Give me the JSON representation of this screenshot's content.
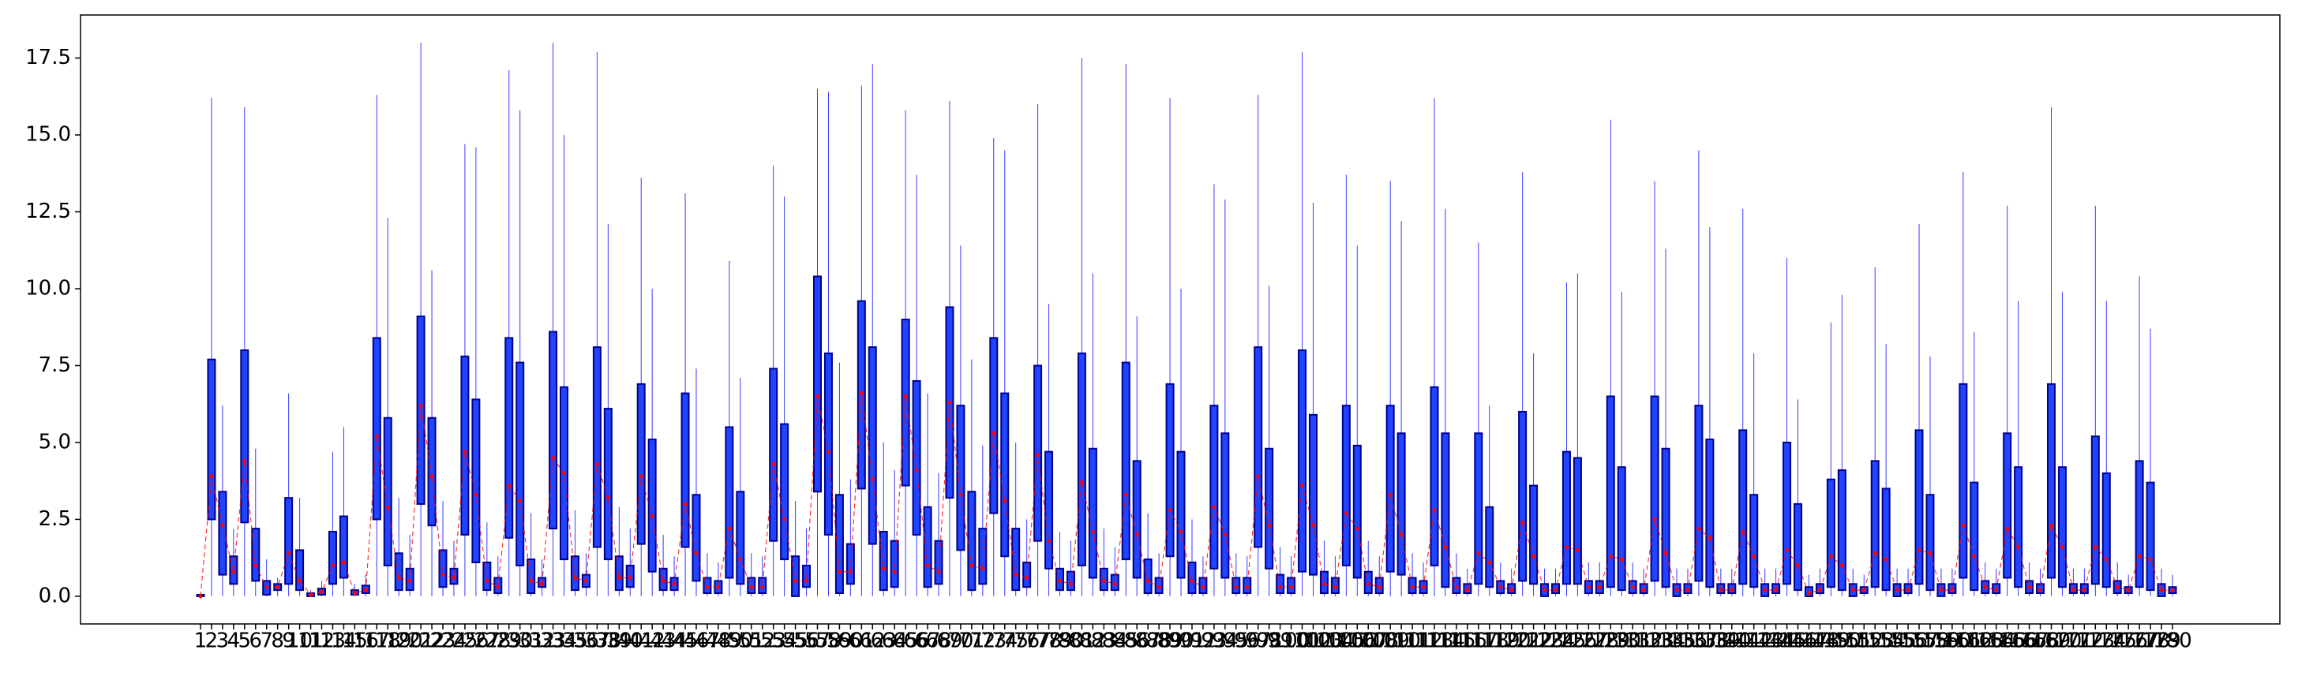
{
  "chart_data": {
    "type": "box",
    "categories": [
      1,
      2,
      3,
      4,
      5,
      6,
      7,
      8,
      9,
      10,
      11,
      12,
      13,
      14,
      15,
      16,
      17,
      18,
      19,
      20,
      21,
      22,
      23,
      24,
      25,
      26,
      27,
      28,
      29,
      30,
      31,
      32,
      33,
      34,
      35,
      36,
      37,
      38,
      39,
      40,
      41,
      42,
      43,
      44,
      45,
      46,
      47,
      48,
      49,
      50,
      51,
      52,
      53,
      54,
      55,
      56,
      57,
      58,
      59,
      60,
      61,
      62,
      63,
      64,
      65,
      66,
      67,
      68,
      69,
      70,
      71,
      72,
      73,
      74,
      75,
      76,
      77,
      78,
      79,
      80,
      81,
      82,
      83,
      84,
      85,
      86,
      87,
      88,
      89,
      90,
      91,
      92,
      93,
      94,
      95,
      96,
      97,
      98,
      99,
      100,
      101,
      102,
      103,
      104,
      105,
      106,
      107,
      108,
      109,
      110,
      111,
      112,
      113,
      114,
      115,
      116,
      117,
      118,
      119,
      120,
      121,
      122,
      123,
      124,
      125,
      126,
      127,
      128,
      129,
      130,
      131,
      132,
      133,
      134,
      135,
      136,
      137,
      138,
      139,
      140,
      141,
      142,
      143,
      144,
      145,
      146,
      147,
      148,
      149,
      150,
      151,
      152,
      153,
      154,
      155,
      156,
      157,
      158,
      159,
      160,
      161,
      162,
      163,
      164,
      165,
      166,
      167,
      168,
      169,
      170,
      171,
      172,
      173,
      174,
      175,
      176,
      177,
      178,
      179,
      180
    ],
    "whislo": [
      0,
      0,
      0,
      0,
      0,
      0,
      0,
      0,
      0,
      0,
      0,
      0,
      0,
      0,
      0,
      0,
      0,
      0,
      0,
      0,
      0,
      0,
      0,
      0,
      0,
      0,
      0,
      0,
      0,
      0,
      0,
      0,
      0,
      0,
      0,
      0,
      0,
      0,
      0,
      0,
      0,
      0,
      0,
      0,
      0,
      0,
      0,
      0,
      0,
      0,
      0,
      0,
      0,
      0,
      0,
      0,
      0,
      0,
      0,
      0,
      0,
      0,
      0,
      0,
      0,
      0,
      0,
      0,
      0,
      0,
      0,
      0,
      0,
      0,
      0,
      0,
      0,
      0,
      0,
      0,
      0,
      0,
      0,
      0,
      0,
      0,
      0,
      0,
      0,
      0,
      0,
      0,
      0,
      0,
      0,
      0,
      0,
      0,
      0,
      0,
      0,
      0,
      0,
      0,
      0,
      0,
      0,
      0,
      0,
      0,
      0,
      0,
      0,
      0,
      0,
      0,
      0,
      0,
      0,
      0,
      0,
      0,
      0,
      0,
      0,
      0,
      0,
      0,
      0,
      0,
      0,
      0,
      0,
      0,
      0,
      0,
      0,
      0,
      0,
      0,
      0,
      0,
      0,
      0,
      0,
      0,
      0,
      0,
      0,
      0,
      0,
      0,
      0,
      0,
      0,
      0,
      0,
      0,
      0,
      0,
      0,
      0,
      0,
      0,
      0,
      0,
      0,
      0,
      0,
      0,
      0,
      0,
      0,
      0,
      0,
      0,
      0,
      0,
      0,
      0
    ],
    "q1": [
      0,
      2.5,
      0.7,
      0.4,
      2.4,
      0.5,
      0.05,
      0.2,
      0.4,
      0.2,
      0,
      0.05,
      0.4,
      0.6,
      0.05,
      0.1,
      2.5,
      1.0,
      0.2,
      0.2,
      3.0,
      2.3,
      0.3,
      0.4,
      2.0,
      1.1,
      0.2,
      0.1,
      1.9,
      1.0,
      0.1,
      0.3,
      2.2,
      1.2,
      0.2,
      0.3,
      1.6,
      1.2,
      0.2,
      0.3,
      1.7,
      0.8,
      0.2,
      0.2,
      1.6,
      0.5,
      0.1,
      0.1,
      0.6,
      0.4,
      0.1,
      0.1,
      1.8,
      1.2,
      0,
      0.3,
      3.4,
      2.0,
      0.1,
      0.4,
      3.5,
      1.7,
      0.2,
      0.3,
      3.6,
      2.0,
      0.3,
      0.4,
      3.2,
      1.5,
      0.2,
      0.4,
      2.7,
      1.3,
      0.2,
      0.3,
      1.8,
      0.9,
      0.2,
      0.2,
      1.0,
      0.6,
      0.2,
      0.2,
      1.2,
      0.6,
      0.1,
      0.1,
      1.3,
      0.6,
      0.1,
      0.1,
      0.9,
      0.6,
      0.1,
      0.1,
      1.6,
      0.9,
      0.1,
      0.1,
      0.8,
      0.7,
      0.1,
      0.1,
      1.0,
      0.6,
      0.1,
      0.1,
      0.8,
      0.7,
      0.1,
      0.1,
      1.0,
      0.3,
      0.1,
      0.1,
      0.4,
      0.3,
      0.1,
      0.1,
      0.5,
      0.4,
      0,
      0.1,
      0.4,
      0.4,
      0.1,
      0.1,
      0.3,
      0.2,
      0.1,
      0.1,
      0.5,
      0.3,
      0,
      0.1,
      0.5,
      0.3,
      0.1,
      0.1,
      0.4,
      0.3,
      0,
      0.1,
      0.4,
      0.2,
      0,
      0.1,
      0.3,
      0.2,
      0,
      0.1,
      0.3,
      0.2,
      0,
      0.1,
      0.4,
      0.2,
      0,
      0.1,
      0.6,
      0.2,
      0.1,
      0.1,
      0.6,
      0.3,
      0.1,
      0.1,
      0.6,
      0.3,
      0.1,
      0.1,
      0.4,
      0.3,
      0.1,
      0.1,
      0.3,
      0.2,
      0,
      0.1
    ],
    "median": [
      0,
      3.9,
      2.3,
      0.8,
      4.4,
      1.0,
      0.3,
      0.3,
      1.4,
      0.5,
      0.05,
      0.15,
      1.0,
      1.1,
      0.1,
      0.2,
      5.2,
      2.9,
      0.6,
      0.5,
      6.2,
      3.9,
      0.7,
      0.6,
      4.7,
      3.3,
      0.5,
      0.3,
      3.6,
      3.1,
      0.5,
      0.4,
      4.5,
      4.0,
      0.6,
      0.5,
      4.3,
      3.2,
      0.6,
      0.6,
      3.9,
      2.6,
      0.5,
      0.4,
      3.0,
      1.4,
      0.3,
      0.3,
      2.2,
      1.2,
      0.3,
      0.3,
      4.3,
      2.5,
      0.5,
      0.5,
      6.5,
      4.7,
      0.8,
      0.8,
      6.6,
      3.8,
      0.9,
      0.8,
      6.5,
      4.1,
      1.0,
      0.8,
      6.3,
      3.3,
      1.0,
      0.9,
      5.3,
      3.1,
      0.7,
      0.6,
      4.6,
      1.8,
      0.5,
      0.4,
      3.7,
      2.1,
      0.5,
      0.4,
      3.3,
      2.0,
      0.5,
      0.3,
      2.8,
      2.1,
      0.5,
      0.3,
      2.9,
      2.0,
      0.3,
      0.3,
      3.9,
      2.3,
      0.3,
      0.3,
      3.6,
      2.3,
      0.4,
      0.3,
      2.7,
      2.2,
      0.4,
      0.3,
      3.3,
      2.0,
      0.3,
      0.3,
      2.8,
      1.6,
      0.3,
      0.2,
      1.4,
      1.1,
      0.3,
      0.2,
      2.4,
      1.3,
      0.2,
      0.2,
      1.6,
      1.5,
      0.3,
      0.3,
      1.3,
      1.2,
      0.3,
      0.2,
      2.5,
      1.4,
      0.2,
      0.2,
      2.2,
      1.9,
      0.2,
      0.2,
      2.1,
      1.3,
      0.2,
      0.2,
      1.5,
      1.0,
      0.1,
      0.2,
      1.3,
      1.0,
      0.2,
      0.2,
      1.4,
      1.2,
      0.2,
      0.2,
      1.5,
      1.4,
      0.2,
      0.2,
      2.3,
      1.3,
      0.3,
      0.2,
      2.2,
      1.6,
      0.3,
      0.2,
      2.3,
      1.6,
      0.2,
      0.2,
      1.6,
      1.2,
      0.3,
      0.2,
      1.3,
      1.2,
      0.2,
      0.2
    ],
    "q3": [
      0.05,
      7.7,
      3.4,
      1.3,
      8.0,
      2.2,
      0.5,
      0.4,
      3.2,
      1.5,
      0.1,
      0.25,
      2.1,
      2.6,
      0.2,
      0.35,
      8.4,
      5.8,
      1.4,
      0.9,
      9.1,
      5.8,
      1.5,
      0.9,
      7.8,
      6.4,
      1.1,
      0.6,
      8.4,
      7.6,
      1.2,
      0.6,
      8.6,
      6.8,
      1.3,
      0.7,
      8.1,
      6.1,
      1.3,
      1.0,
      6.9,
      5.1,
      0.9,
      0.6,
      6.6,
      3.3,
      0.6,
      0.5,
      5.5,
      3.4,
      0.6,
      0.6,
      7.4,
      5.6,
      1.3,
      1.0,
      10.4,
      7.9,
      3.3,
      1.7,
      9.6,
      8.1,
      2.1,
      1.8,
      9.0,
      7.0,
      2.9,
      1.8,
      9.4,
      6.2,
      3.4,
      2.2,
      8.4,
      6.6,
      2.2,
      1.1,
      7.5,
      4.7,
      0.9,
      0.8,
      7.9,
      4.8,
      0.9,
      0.7,
      7.6,
      4.4,
      1.2,
      0.6,
      6.9,
      4.7,
      1.1,
      0.6,
      6.2,
      5.3,
      0.6,
      0.6,
      8.1,
      4.8,
      0.7,
      0.6,
      8.0,
      5.9,
      0.8,
      0.6,
      6.2,
      4.9,
      0.8,
      0.6,
      6.2,
      5.3,
      0.6,
      0.5,
      6.8,
      5.3,
      0.6,
      0.4,
      5.3,
      2.9,
      0.5,
      0.4,
      6.0,
      3.6,
      0.4,
      0.4,
      4.7,
      4.5,
      0.5,
      0.5,
      6.5,
      4.2,
      0.5,
      0.4,
      6.5,
      4.8,
      0.4,
      0.4,
      6.2,
      5.1,
      0.4,
      0.4,
      5.4,
      3.3,
      0.4,
      0.4,
      5.0,
      3.0,
      0.3,
      0.4,
      3.8,
      4.1,
      0.4,
      0.3,
      4.4,
      3.5,
      0.4,
      0.4,
      5.4,
      3.3,
      0.4,
      0.4,
      6.9,
      3.7,
      0.5,
      0.4,
      5.3,
      4.2,
      0.5,
      0.4,
      6.9,
      4.2,
      0.4,
      0.4,
      5.2,
      4.0,
      0.5,
      0.3,
      4.4,
      3.7,
      0.4,
      0.3
    ],
    "whishi": [
      0.05,
      16.2,
      6.2,
      2.2,
      15.9,
      4.8,
      1.2,
      0.6,
      6.6,
      3.2,
      0.2,
      0.5,
      4.7,
      5.5,
      0.4,
      0.7,
      16.3,
      12.3,
      3.2,
      2.0,
      18.0,
      10.6,
      3.1,
      1.8,
      14.7,
      14.6,
      2.4,
      1.3,
      17.1,
      15.8,
      2.7,
      1.2,
      18.0,
      15.0,
      2.8,
      1.4,
      17.7,
      12.1,
      2.9,
      2.2,
      13.6,
      10.0,
      2.0,
      1.3,
      13.1,
      7.4,
      1.4,
      1.1,
      10.9,
      7.1,
      1.4,
      1.3,
      14.0,
      13.0,
      3.1,
      2.2,
      16.5,
      16.4,
      7.6,
      3.8,
      16.6,
      17.3,
      5.0,
      4.1,
      15.8,
      13.7,
      6.6,
      4.0,
      16.1,
      11.4,
      7.7,
      4.9,
      14.9,
      14.5,
      5.0,
      2.5,
      16.0,
      9.5,
      2.1,
      1.8,
      17.5,
      10.5,
      2.2,
      1.6,
      17.3,
      9.1,
      2.7,
      1.4,
      16.2,
      10.0,
      2.5,
      1.3,
      13.4,
      12.9,
      1.4,
      1.3,
      16.3,
      10.1,
      1.6,
      1.3,
      17.7,
      12.8,
      1.8,
      1.3,
      13.7,
      11.4,
      1.8,
      1.3,
      13.5,
      12.2,
      1.4,
      1.1,
      16.2,
      12.6,
      1.4,
      0.9,
      11.5,
      6.2,
      1.1,
      0.9,
      13.8,
      7.9,
      0.9,
      0.9,
      10.2,
      10.5,
      1.1,
      1.1,
      15.5,
      9.9,
      1.1,
      0.9,
      13.5,
      11.3,
      0.9,
      0.9,
      14.5,
      12.0,
      0.9,
      0.9,
      12.6,
      7.9,
      0.9,
      0.9,
      11.0,
      6.4,
      0.7,
      0.9,
      8.9,
      9.8,
      0.9,
      0.7,
      10.7,
      8.2,
      0.9,
      0.9,
      12.1,
      7.8,
      0.9,
      0.9,
      13.8,
      8.6,
      1.1,
      0.9,
      12.7,
      9.6,
      1.1,
      0.9,
      15.9,
      9.9,
      0.9,
      0.9,
      12.7,
      9.6,
      1.1,
      0.7,
      10.4,
      8.7,
      0.9,
      0.7
    ],
    "box_color": "#2044ff",
    "edge_color": "#00008b",
    "whisker_color": "#3a3aff",
    "median_color": "#ff0000",
    "ylim": [
      -0.9,
      18.9
    ],
    "yticks": [
      {
        "value": 0,
        "label": "0.0"
      },
      2.5,
      {
        "value": 5,
        "label": "5.0"
      },
      7.5,
      {
        "value": 10,
        "label": "10.0"
      },
      12.5,
      {
        "value": 15,
        "label": "15.0"
      },
      17.5
    ],
    "grid": false
  }
}
